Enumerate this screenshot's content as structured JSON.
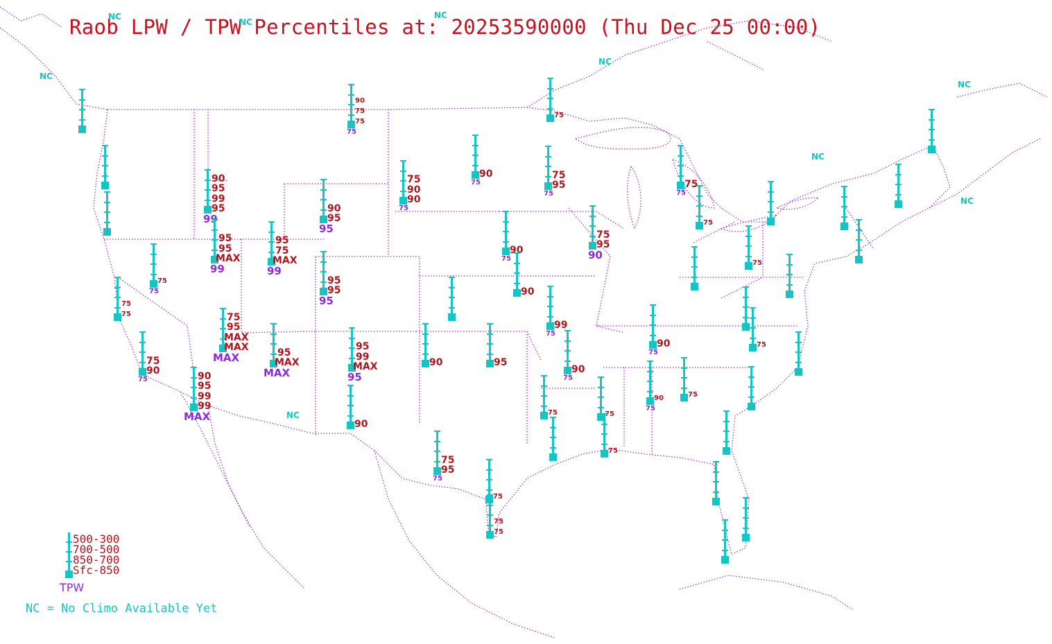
{
  "title": "Raob LPW / TPW Percentiles at: 20253590000 (Thu Dec 25 00:00)",
  "legend": {
    "layers": [
      "500-300",
      "700-500",
      "850-700",
      "Sfc-850"
    ],
    "tpw_label": "TPW",
    "nc_note": "NC = No Climo Available Yet"
  },
  "colors": {
    "title": "#c8101e",
    "layer_label": "#b3131b",
    "tpw_label": "#8a2be2",
    "station": "#16c4c4",
    "boundaries": "#9b2fc6"
  },
  "no_climo_marker": "NC",
  "stations": [
    {
      "id": "s01",
      "labels": [],
      "tpw": ""
    },
    {
      "id": "s02",
      "labels": [],
      "tpw": ""
    },
    {
      "id": "s03",
      "labels": [],
      "tpw": ""
    },
    {
      "id": "s04",
      "labels": [
        "90",
        "95",
        "99",
        "95"
      ],
      "tpw": "99"
    },
    {
      "id": "s05",
      "labels": [
        "95",
        "95",
        "MAX"
      ],
      "tpw": "99"
    },
    {
      "id": "s06",
      "labels": [
        "95",
        "75",
        "MAX"
      ],
      "tpw": "99"
    },
    {
      "id": "s07",
      "labels": [
        "90",
        "75",
        "75"
      ],
      "tpw": "75"
    },
    {
      "id": "s08",
      "labels": [
        "90",
        "95"
      ],
      "tpw": "95"
    },
    {
      "id": "s09",
      "labels": [
        "95",
        "95"
      ],
      "tpw": "95"
    },
    {
      "id": "s10",
      "labels": [
        "75"
      ],
      "tpw": "75"
    },
    {
      "id": "s11",
      "labels": [
        "75",
        "75"
      ],
      "tpw": ""
    },
    {
      "id": "s12",
      "labels": [
        "75",
        "95",
        "MAX",
        "MAX"
      ],
      "tpw": "MAX"
    },
    {
      "id": "s13",
      "labels": [
        "95",
        "MAX"
      ],
      "tpw": "MAX"
    },
    {
      "id": "s14",
      "labels": [
        "95",
        "99",
        "MAX"
      ],
      "tpw": "95"
    },
    {
      "id": "s15",
      "labels": [
        "75",
        "90"
      ],
      "tpw": "75"
    },
    {
      "id": "s16",
      "labels": [
        "90",
        "95",
        "99",
        "99"
      ],
      "tpw": "MAX"
    },
    {
      "id": "s17",
      "labels": [
        "90"
      ],
      "tpw": ""
    },
    {
      "id": "s18",
      "labels": [
        "75",
        "90",
        "90"
      ],
      "tpw": "75"
    },
    {
      "id": "s19",
      "labels": [
        "90"
      ],
      "tpw": "75"
    },
    {
      "id": "s20",
      "labels": [
        "75"
      ],
      "tpw": ""
    },
    {
      "id": "s21",
      "labels": [
        "75",
        "95"
      ],
      "tpw": "75"
    },
    {
      "id": "s22",
      "labels": [
        "90"
      ],
      "tpw": "75"
    },
    {
      "id": "s23",
      "labels": [
        "75",
        "95"
      ],
      "tpw": "90"
    },
    {
      "id": "s24",
      "labels": [
        "90"
      ],
      "tpw": ""
    },
    {
      "id": "s25",
      "labels": [],
      "tpw": ""
    },
    {
      "id": "s26",
      "labels": [
        "90"
      ],
      "tpw": ""
    },
    {
      "id": "s27",
      "labels": [
        "95"
      ],
      "tpw": ""
    },
    {
      "id": "s28",
      "labels": [
        "99"
      ],
      "tpw": "75"
    },
    {
      "id": "s29",
      "labels": [
        "90"
      ],
      "tpw": "75"
    },
    {
      "id": "s30",
      "labels": [
        "90"
      ],
      "tpw": "75"
    },
    {
      "id": "s31",
      "labels": [
        "75"
      ],
      "tpw": "75"
    },
    {
      "id": "s32",
      "labels": [
        "75"
      ],
      "tpw": ""
    },
    {
      "id": "s33",
      "labels": [
        "75"
      ],
      "tpw": ""
    },
    {
      "id": "s34",
      "labels": [],
      "tpw": ""
    },
    {
      "id": "s35",
      "labels": [
        "75"
      ],
      "tpw": ""
    },
    {
      "id": "s36",
      "labels": [
        "75"
      ],
      "tpw": ""
    },
    {
      "id": "s37",
      "labels": [
        "75",
        "95"
      ],
      "tpw": "75"
    },
    {
      "id": "s38",
      "labels": [],
      "tpw": ""
    },
    {
      "id": "s39",
      "labels": [
        "75"
      ],
      "tpw": ""
    },
    {
      "id": "s40",
      "labels": [
        "90"
      ],
      "tpw": "75"
    },
    {
      "id": "s41",
      "labels": [
        "75"
      ],
      "tpw": ""
    },
    {
      "id": "s42",
      "labels": [
        "75"
      ],
      "tpw": ""
    },
    {
      "id": "s43",
      "labels": [
        "75",
        "75"
      ],
      "tpw": ""
    },
    {
      "id": "s44",
      "labels": [],
      "tpw": ""
    },
    {
      "id": "s45",
      "labels": [
        "75"
      ],
      "tpw": ""
    },
    {
      "id": "s46",
      "labels": [],
      "tpw": ""
    },
    {
      "id": "s47",
      "labels": [],
      "tpw": ""
    },
    {
      "id": "s48",
      "labels": [],
      "tpw": ""
    },
    {
      "id": "s49",
      "labels": [],
      "tpw": ""
    },
    {
      "id": "s50",
      "labels": [],
      "tpw": ""
    },
    {
      "id": "s51",
      "labels": [],
      "tpw": ""
    },
    {
      "id": "s52",
      "labels": [],
      "tpw": ""
    },
    {
      "id": "s53",
      "labels": [],
      "tpw": ""
    },
    {
      "id": "s54",
      "labels": [],
      "tpw": ""
    },
    {
      "id": "s55",
      "labels": [],
      "tpw": ""
    },
    {
      "id": "s56",
      "labels": [],
      "tpw": ""
    },
    {
      "id": "s57",
      "labels": [],
      "tpw": ""
    },
    {
      "id": "s58",
      "labels": [],
      "tpw": ""
    },
    {
      "id": "s59",
      "labels": [],
      "tpw": ""
    },
    {
      "id": "s60",
      "labels": [],
      "tpw": ""
    },
    {
      "id": "s61",
      "labels": [],
      "tpw": ""
    }
  ]
}
